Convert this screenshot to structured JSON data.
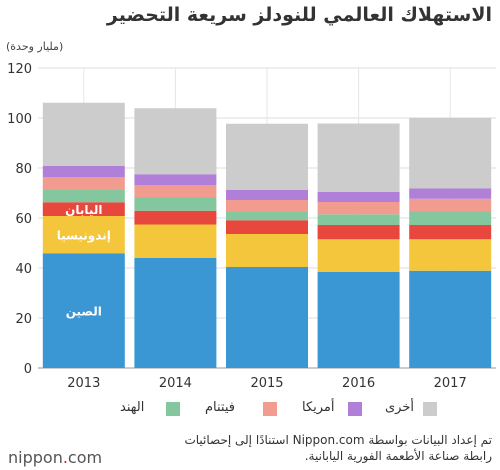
{
  "header": {
    "title": "الاستهلاك العالمي للنودلز سريعة التحضير"
  },
  "chart_data": {
    "type": "bar",
    "stacked": true,
    "unit_label": "(مليار وحدة)",
    "categories": [
      "2013",
      "2014",
      "2015",
      "2016",
      "2017"
    ],
    "ylim": [
      0,
      120
    ],
    "yticks": [
      0,
      20,
      40,
      60,
      80,
      100,
      120
    ],
    "grid": true,
    "series": [
      {
        "name": "الصين",
        "color": "#3a97d4",
        "values": [
          45.9,
          44.0,
          40.4,
          38.5,
          38.9
        ]
      },
      {
        "name": "إندونيسيا",
        "color": "#f4c63c",
        "values": [
          14.9,
          13.4,
          13.2,
          13.0,
          12.6
        ]
      },
      {
        "name": "اليابان",
        "color": "#e8473e",
        "values": [
          5.5,
          5.5,
          5.5,
          5.7,
          5.7
        ]
      },
      {
        "name": "الهند",
        "color": "#84c79f",
        "values": [
          4.9,
          5.3,
          3.3,
          4.3,
          5.4
        ]
      },
      {
        "name": "فيتنام",
        "color": "#f19c8f",
        "values": [
          5.2,
          5.0,
          4.8,
          4.9,
          5.1
        ]
      },
      {
        "name": "أمريكا",
        "color": "#b07fd8",
        "values": [
          4.4,
          4.3,
          4.1,
          4.1,
          4.1
        ]
      },
      {
        "name": "أخرى",
        "color": "#cccccc",
        "values": [
          25.3,
          26.4,
          26.4,
          27.3,
          28.3
        ]
      }
    ],
    "in_bar_labels": [
      "الصين",
      "إندونيسيا",
      "اليابان"
    ],
    "legend": [
      "الهند",
      "فيتنام",
      "أمريكا",
      "أخرى"
    ],
    "legend_placement": "bottom"
  },
  "footer": {
    "source_line1": "تم إعداد البيانات بواسطة Nippon.com استنادًا إلى إحصائيات",
    "source_line2": "رابطة صناعة الأطعمة الفورية اليابانية.",
    "logo_prefix": "nippon",
    "logo_dot": ".",
    "logo_suffix": "com"
  }
}
